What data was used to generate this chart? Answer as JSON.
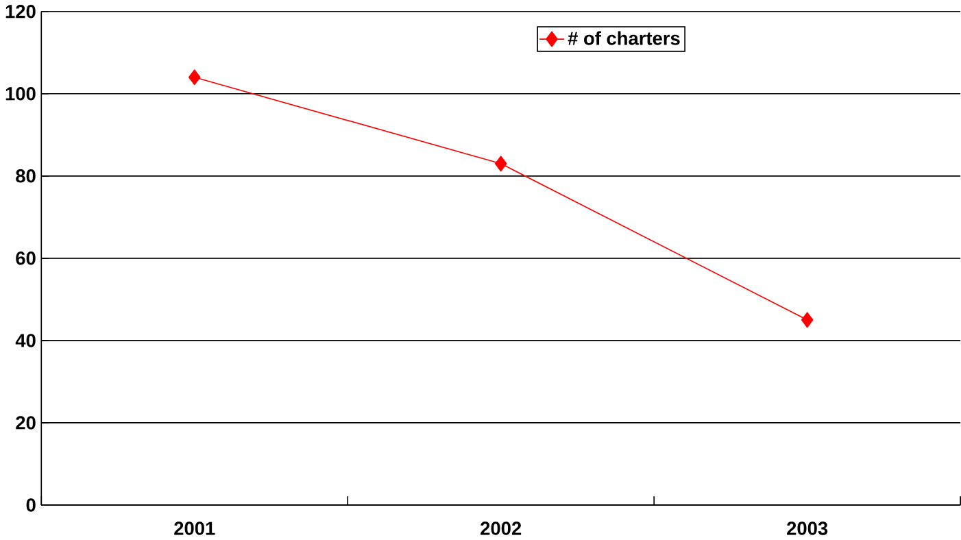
{
  "chart_data": {
    "type": "line",
    "categories": [
      "2001",
      "2002",
      "2003"
    ],
    "series": [
      {
        "name": "# of charters",
        "color": "#ff0000",
        "values": [
          104,
          83,
          45
        ]
      }
    ],
    "ylim": [
      0,
      120
    ],
    "yticks": [
      0,
      20,
      40,
      60,
      80,
      100,
      120
    ],
    "grid": "y",
    "legend": "top",
    "marker": "diamond",
    "line_style": "solid"
  }
}
